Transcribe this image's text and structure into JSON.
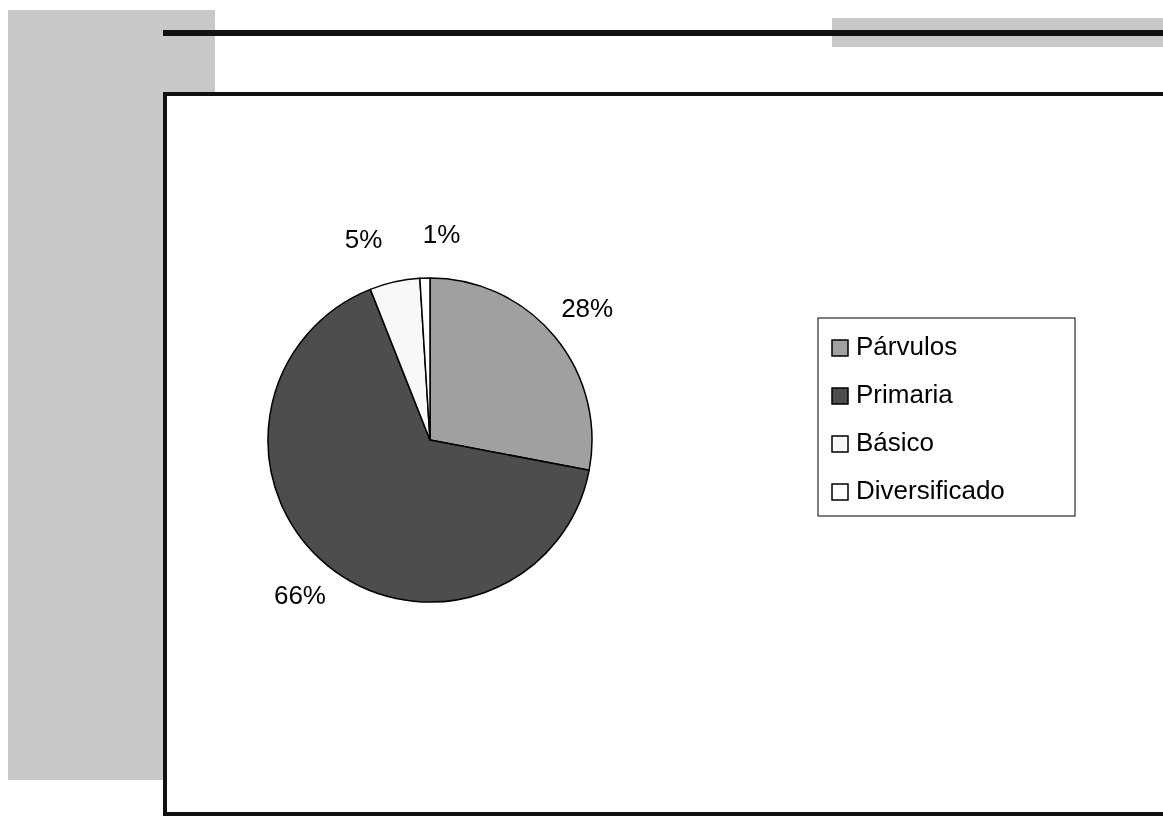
{
  "chart_data": {
    "type": "pie",
    "categories": [
      "Párvulos",
      "Primaria",
      "Básico",
      "Diversificado"
    ],
    "values": [
      28,
      66,
      5,
      1
    ],
    "value_labels": [
      "28%",
      "66%",
      "5%",
      "1%"
    ],
    "colors": [
      "#a0a0a0",
      "#4d4d4d",
      "#f8f8f8",
      "#ffffff"
    ],
    "legend": "right"
  }
}
